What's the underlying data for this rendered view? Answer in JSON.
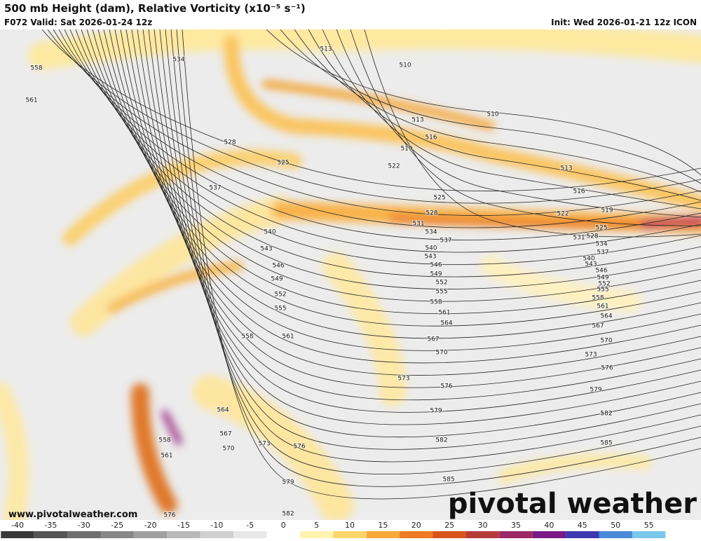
{
  "header": {
    "title": "500 mb Height (dam), Relative Vorticity (x10⁻⁵ s⁻¹)",
    "valid": "F072 Valid: Sat 2026-01-24 12z",
    "init": "Init: Wed 2026-01-21 12z ICON"
  },
  "contour_labels": [
    534,
    558,
    561,
    513,
    510,
    510,
    513,
    516,
    519,
    522,
    513,
    516,
    519,
    522,
    525,
    528,
    531,
    534,
    537,
    540,
    543,
    546,
    549,
    552,
    555,
    558,
    561,
    564,
    567,
    570,
    573,
    576,
    579,
    582,
    585,
    528,
    525,
    537,
    525,
    528,
    531,
    534,
    537,
    540,
    543,
    546,
    549,
    552,
    555,
    558,
    561,
    564,
    567,
    570,
    573,
    576,
    579,
    582,
    585,
    540,
    543,
    546,
    549,
    552,
    555,
    558,
    561,
    564,
    567,
    570,
    573,
    576,
    579,
    582,
    576,
    558,
    561
  ],
  "colorbar": {
    "ticks": [
      -40,
      -35,
      -30,
      -25,
      -20,
      -15,
      -10,
      -5,
      0,
      5,
      10,
      15,
      20,
      25,
      30,
      35,
      40,
      45,
      50,
      55
    ]
  },
  "footer": {
    "url": "www.pivotalweather.com",
    "brand": "pivotal weather"
  }
}
